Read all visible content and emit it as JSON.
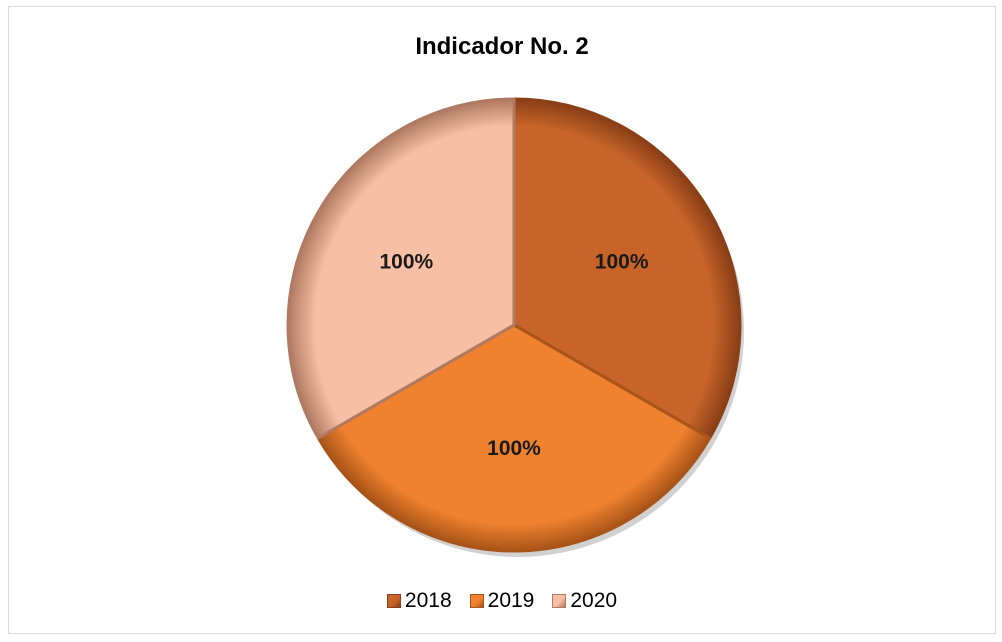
{
  "chart_data": {
    "type": "pie",
    "title": "Indicador No. 2",
    "categories": [
      "2018",
      "2019",
      "2020"
    ],
    "values": [
      1,
      1,
      1
    ],
    "data_labels": [
      "100%",
      "100%",
      "100%"
    ],
    "colors": [
      "#C8642A",
      "#F0822F",
      "#F7BFA4"
    ],
    "dark_colors": [
      "#8A3F16",
      "#A95418",
      "#B07A62"
    ],
    "legend": {
      "position": "bottom",
      "entries": [
        "2018",
        "2019",
        "2020"
      ]
    }
  }
}
